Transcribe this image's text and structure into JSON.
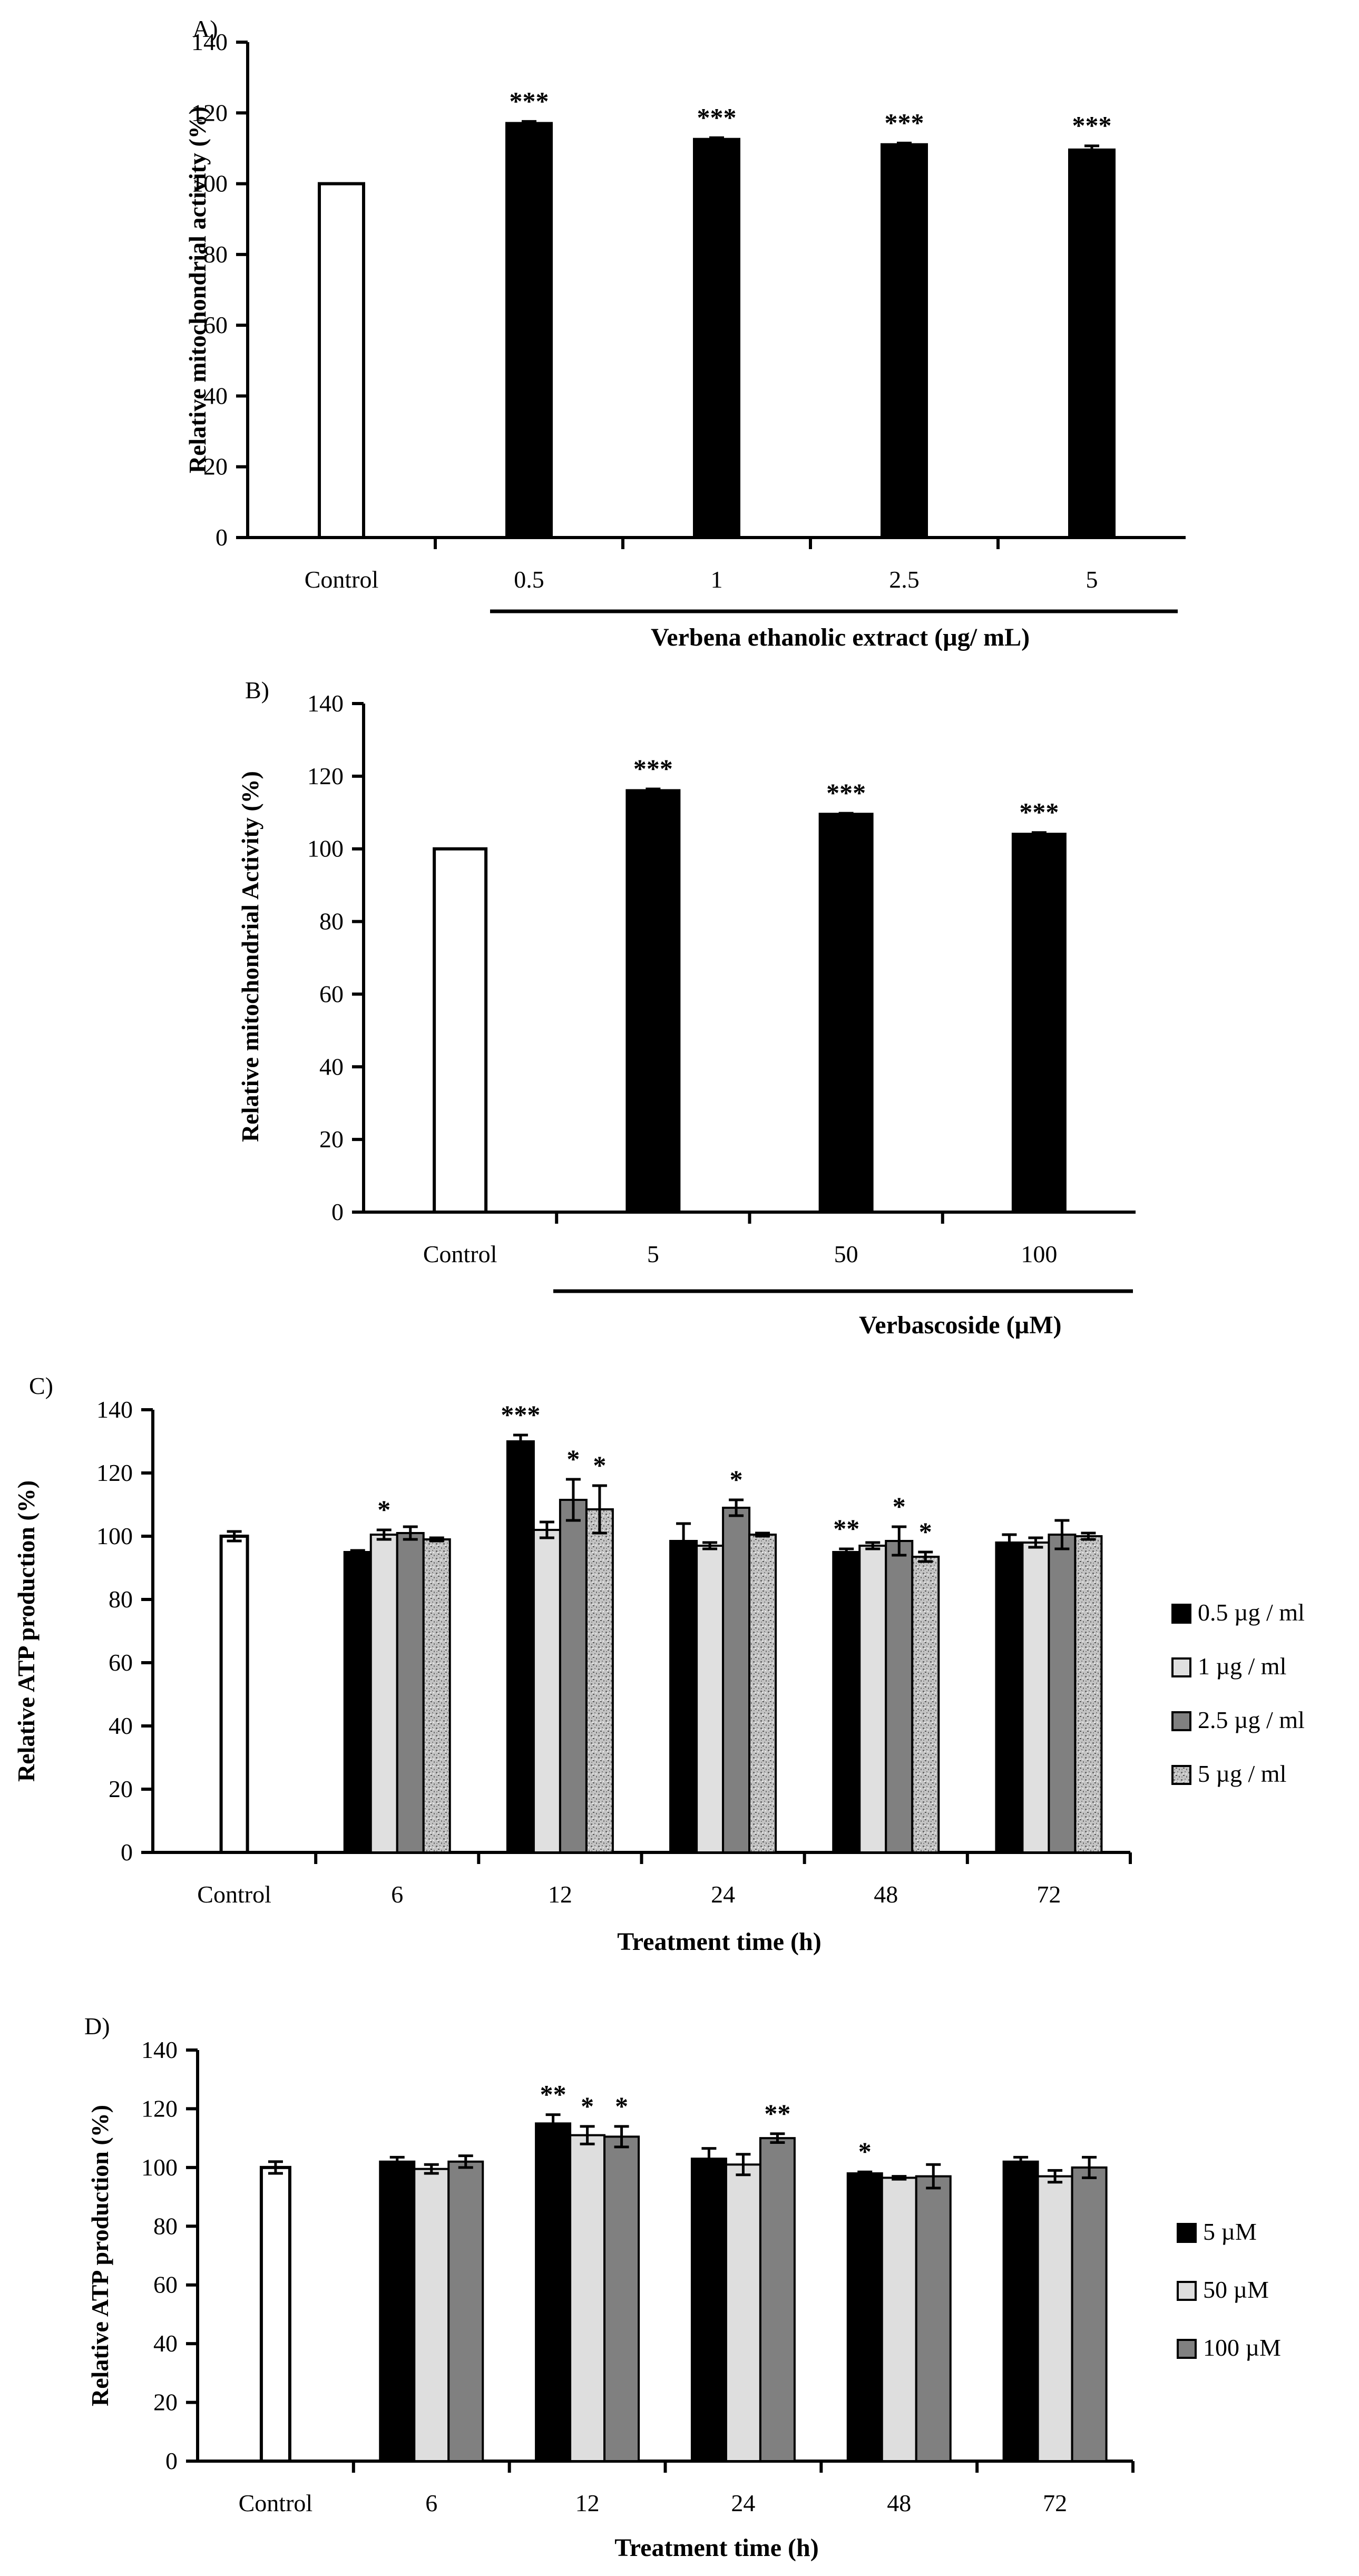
{
  "chart_data": [
    {
      "panel": "A)",
      "type": "bar",
      "categories": [
        "Control",
        "0.5",
        "1",
        "2.5",
        "5"
      ],
      "values": [
        100,
        117,
        112.5,
        111,
        109.5
      ],
      "errors": [
        0,
        0.6,
        0.5,
        0.5,
        1.2
      ],
      "significance": [
        "",
        "***",
        "***",
        "***",
        "***"
      ],
      "ylabel": "Relative mitochondrial activity (%)",
      "group_label": "Verbena ethanolic extract (µg/ mL)",
      "ylim": [
        0,
        140
      ],
      "yticks": [
        0,
        20,
        40,
        60,
        80,
        100,
        120,
        140
      ]
    },
    {
      "panel": "B)",
      "type": "bar",
      "categories": [
        "Control",
        "5",
        "50",
        "100"
      ],
      "values": [
        100,
        116,
        109.5,
        104
      ],
      "errors": [
        0,
        0.5,
        0.3,
        0.5
      ],
      "significance": [
        "",
        "***",
        "***",
        "***"
      ],
      "ylabel": "Relative mitochondrial Activity (%)",
      "group_label": "Verbascoside (µM)",
      "ylim": [
        0,
        140
      ],
      "yticks": [
        0,
        20,
        40,
        60,
        80,
        100,
        120,
        140
      ]
    },
    {
      "panel": "C)",
      "type": "bar",
      "control": {
        "label": "Control",
        "value": 100,
        "error": 1.5
      },
      "categories": [
        "6",
        "12",
        "24",
        "48",
        "72"
      ],
      "series": [
        {
          "name": "0.5 µg / ml",
          "values": [
            95,
            130,
            98.5,
            95,
            98
          ],
          "errors": [
            0.5,
            2,
            5.5,
            1,
            2.5
          ],
          "significance": [
            "",
            "***",
            "",
            "**",
            ""
          ]
        },
        {
          "name": "1 µg / ml",
          "values": [
            100.5,
            102,
            97,
            97,
            98
          ],
          "errors": [
            1.5,
            2.5,
            1,
            1,
            1.5
          ],
          "significance": [
            "*",
            "",
            "",
            "",
            ""
          ]
        },
        {
          "name": "2.5 µg / ml",
          "values": [
            101,
            111.5,
            109,
            98.5,
            100.5
          ],
          "errors": [
            2,
            6.5,
            2.5,
            4.5,
            4.5
          ],
          "significance": [
            "",
            "*",
            "*",
            "*",
            ""
          ]
        },
        {
          "name": "5  µg / ml",
          "values": [
            99,
            108.5,
            100.5,
            93.5,
            100
          ],
          "errors": [
            0.5,
            7.5,
            0.5,
            1.5,
            1
          ],
          "significance": [
            "",
            "*",
            "",
            "*",
            ""
          ]
        }
      ],
      "xlabel": "Treatment time (h)",
      "ylabel": "Relative ATP production (%)",
      "ylim": [
        0,
        140
      ],
      "yticks": [
        0,
        20,
        40,
        60,
        80,
        100,
        120,
        140
      ]
    },
    {
      "panel": "D)",
      "type": "bar",
      "control": {
        "label": "Control",
        "value": 100,
        "error": 2
      },
      "categories": [
        "6",
        "12",
        "24",
        "48",
        "72"
      ],
      "series": [
        {
          "name": "5 µM",
          "values": [
            102,
            115,
            103,
            98,
            102
          ],
          "errors": [
            1.5,
            3,
            3.5,
            0.5,
            1.5
          ],
          "significance": [
            "",
            "**",
            "",
            "*",
            ""
          ]
        },
        {
          "name": "50 µM",
          "values": [
            99.5,
            111,
            101,
            96.5,
            97
          ],
          "errors": [
            1.5,
            3,
            3.5,
            0.5,
            2
          ],
          "significance": [
            "",
            "*",
            "",
            "",
            ""
          ]
        },
        {
          "name": "100 µM",
          "values": [
            102,
            110.5,
            110,
            97,
            100
          ],
          "errors": [
            2,
            3.5,
            1.5,
            4,
            3.5
          ],
          "significance": [
            "",
            "*",
            "**",
            "",
            ""
          ]
        }
      ],
      "xlabel": "Treatment time (h)",
      "ylabel": "Relative ATP production (%)",
      "ylim": [
        0,
        140
      ],
      "yticks": [
        0,
        20,
        40,
        60,
        80,
        100,
        120,
        140
      ]
    }
  ],
  "colors": {
    "control": "#ffffff",
    "treatment": "#000000",
    "C_series": [
      "#000000",
      "#e0e0e0",
      "#808080",
      "#b8b8b8"
    ],
    "D_series": [
      "#000000",
      "#dedede",
      "#808080"
    ]
  }
}
